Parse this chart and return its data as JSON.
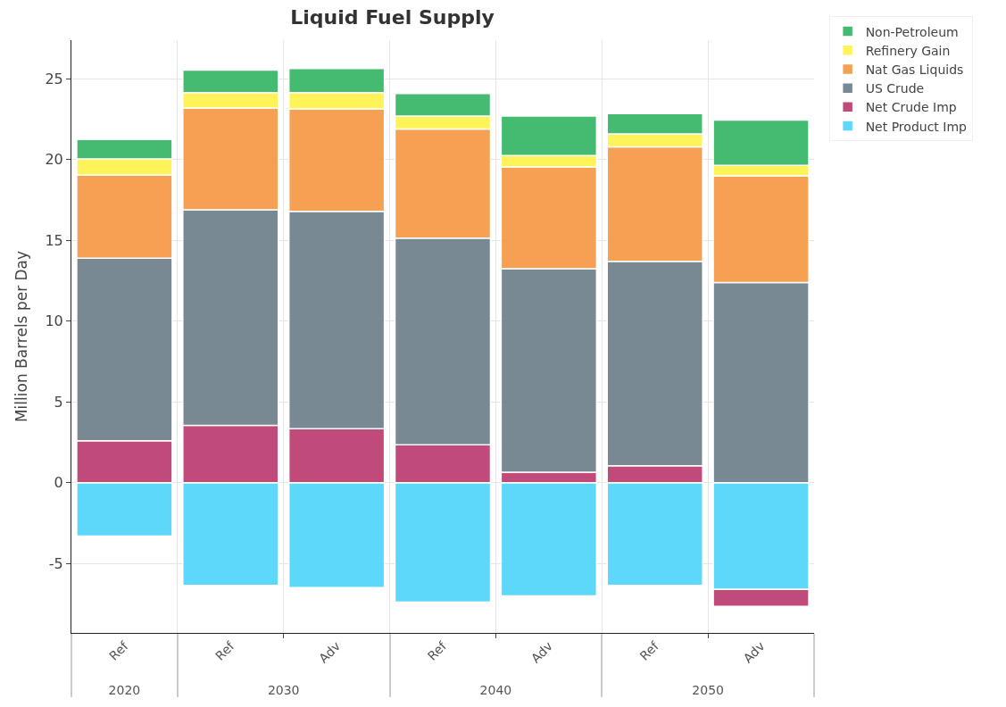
{
  "chart_data": {
    "type": "bar",
    "title": "Liquid Fuel Supply",
    "ylabel": "Million Barrels per Day",
    "categories": [
      "Ref",
      "Ref",
      "Adv",
      "Ref",
      "Adv",
      "Ref",
      "Adv"
    ],
    "annotations": [
      "2020",
      "2030",
      "2040",
      "2050"
    ],
    "stacked": true,
    "grid": true,
    "legend": "top right",
    "ylim": [
      -9.3,
      27.4
    ],
    "yticks": [
      -5,
      0,
      5,
      10,
      15,
      20,
      25
    ],
    "series": [
      {
        "name": "Net Product Imp",
        "color": "#55d6fb",
        "values": [
          -3.3,
          -6.35,
          -6.5,
          -7.4,
          -7.0,
          -6.35,
          -6.6
        ]
      },
      {
        "name": "Net Crude Imp",
        "color": "#bd4273",
        "values": [
          2.6,
          3.55,
          3.35,
          2.35,
          0.65,
          1.05,
          -1.05
        ]
      },
      {
        "name": "US Crude",
        "color": "#71838e",
        "values": [
          11.3,
          13.35,
          13.45,
          12.8,
          12.6,
          12.65,
          12.4
        ]
      },
      {
        "name": "Nat Gas Liquids",
        "color": "#f59b4a",
        "values": [
          5.15,
          6.3,
          6.35,
          6.75,
          6.3,
          7.1,
          6.6
        ]
      },
      {
        "name": "Refinery Gain",
        "color": "#fff352",
        "values": [
          1.0,
          0.95,
          1.0,
          0.8,
          0.7,
          0.8,
          0.65
        ]
      },
      {
        "name": "Non-Petroleum",
        "color": "#3cb86b",
        "values": [
          1.2,
          1.4,
          1.5,
          1.4,
          2.45,
          1.25,
          2.8
        ]
      }
    ]
  }
}
